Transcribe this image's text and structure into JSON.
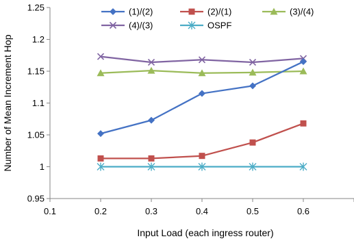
{
  "chart_data": {
    "type": "line",
    "xlabel": "Input Load (each ingress router)",
    "ylabel": "Number of Mean Increment Hop",
    "xlim": [
      0.1,
      0.7
    ],
    "ylim": [
      0.95,
      1.25
    ],
    "x_ticks": [
      "0.1",
      "0.2",
      "0.3",
      "0.4",
      "0.5",
      "0.6",
      ""
    ],
    "y_ticks": [
      "0.95",
      "1",
      "1.05",
      "1.1",
      "1.15",
      "1.2",
      "1.25"
    ],
    "grid": false,
    "legend_position": "top",
    "x": [
      0.2,
      0.3,
      0.4,
      0.5,
      0.6
    ],
    "series": [
      {
        "name": "(1)/(2)",
        "values": [
          1.052,
          1.073,
          1.115,
          1.127,
          1.165
        ],
        "color": "#4472c4",
        "marker": "diamond"
      },
      {
        "name": "(2)/(1)",
        "values": [
          1.013,
          1.013,
          1.017,
          1.038,
          1.068
        ],
        "color": "#c0504d",
        "marker": "square"
      },
      {
        "name": "(3)/(4)",
        "values": [
          1.147,
          1.151,
          1.147,
          1.148,
          1.15
        ],
        "color": "#9bbb59",
        "marker": "triangle"
      },
      {
        "name": "(4)/(3)",
        "values": [
          1.173,
          1.164,
          1.168,
          1.164,
          1.17
        ],
        "color": "#8064a2",
        "marker": "x"
      },
      {
        "name": "OSPF",
        "values": [
          1.0,
          1.0,
          1.0,
          1.0,
          1.0
        ],
        "color": "#4bacc6",
        "marker": "star"
      }
    ]
  }
}
